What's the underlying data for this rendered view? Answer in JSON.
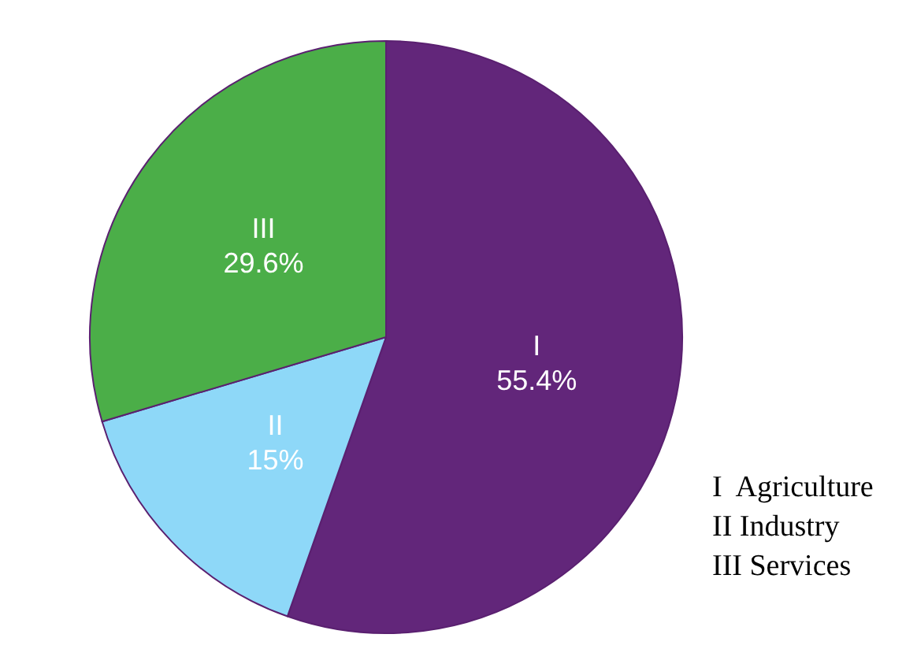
{
  "chart_data": {
    "type": "pie",
    "categories": [
      "I",
      "II",
      "III"
    ],
    "values": [
      55.4,
      15,
      29.6
    ],
    "colors": [
      "#62267a",
      "#8ed8f8",
      "#4bae48"
    ],
    "value_labels": [
      "55.4%",
      "15%",
      "29.6%"
    ],
    "annotations": [
      "I  Agriculture",
      "II Industry",
      "III Services"
    ]
  }
}
